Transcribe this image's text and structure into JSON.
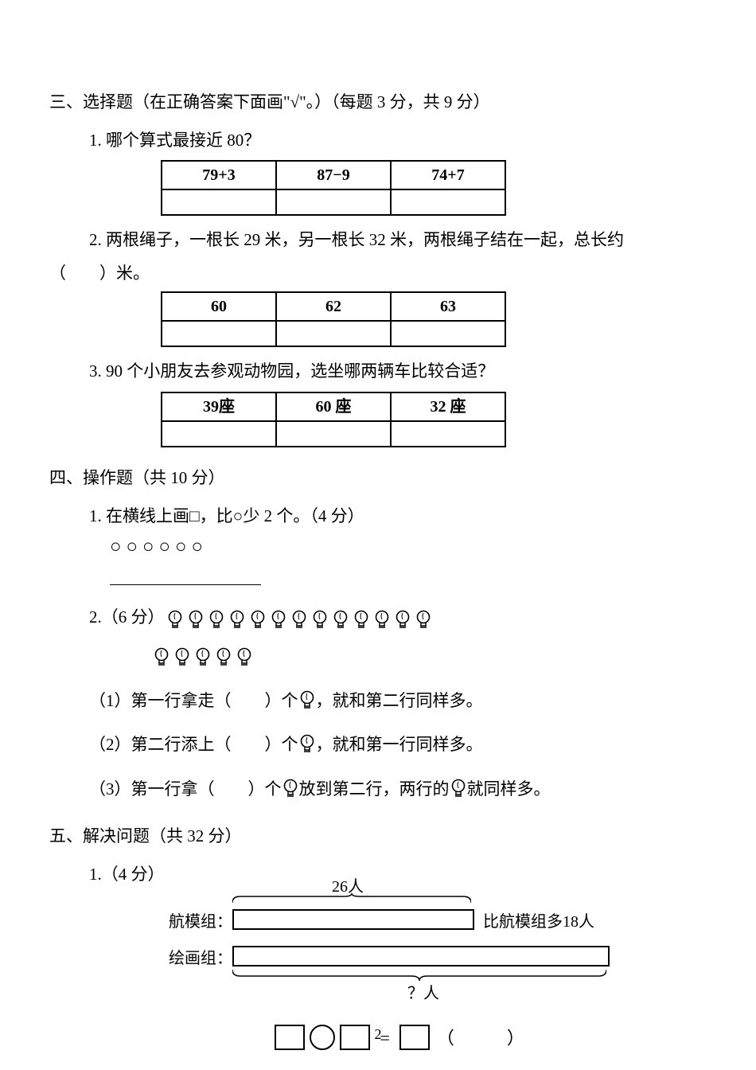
{
  "section3": {
    "title": "三、选择题（在正确答案下面画\"√\"。）（每题 3 分，共 9 分）",
    "q1": {
      "text": "1. 哪个算式最接近 80？",
      "opts": [
        "79+3",
        "87−9",
        "74+7"
      ]
    },
    "q2": {
      "text_a": "2. 两根绳子，一根长 29 米，另一根长 32 米，两根绳子结在一起，总长约",
      "text_b": "（　　）米。",
      "opts": [
        "60",
        "62",
        "63"
      ]
    },
    "q3": {
      "text": "3. 90 个小朋友去参观动物园，选坐哪两辆车比较合适？",
      "opts": [
        "39座",
        "60 座",
        "32 座"
      ]
    }
  },
  "section4": {
    "title": "四、操作题（共 10 分）",
    "q1": {
      "text": "1. 在横线上画□，比○少 2 个。（4 分）",
      "circles": "○○○○○○"
    },
    "q2": {
      "prefix": "2.（6 分）",
      "row1_count": 13,
      "row2_count": 5,
      "sub1_a": "（1）第一行拿走（",
      "sub1_b": "）个",
      "sub1_c": "，就和第二行同样多。",
      "sub2_a": "（2）第二行添上（",
      "sub2_b": "）个",
      "sub2_c": "，就和第一行同样多。",
      "sub3_a": "（3）第一行拿（",
      "sub3_b": "）个",
      "sub3_c": "放到第二行，两行的",
      "sub3_d": "就同样多。"
    }
  },
  "section5": {
    "title": "五、解决问题（共 32 分）",
    "q1": {
      "prefix": "1.（4 分）",
      "top_label": "26人",
      "left1": "航模组：",
      "left2": "绘画组：",
      "right_label": "比航模组多18人",
      "bottom_label": "？人",
      "eq_tail": "（　　　）"
    }
  },
  "page_number": "2",
  "colors": {
    "fg": "#000000",
    "bg": "#ffffff"
  }
}
